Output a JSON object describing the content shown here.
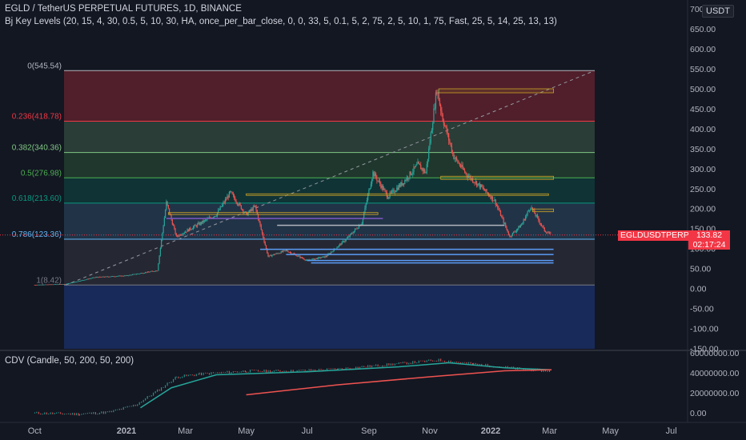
{
  "header": {
    "title": "EGLD / TetherUS PERPETUAL FUTURES, 1D, BINANCE",
    "indicator": "Bj Key Levels (20, 15, 4, 30, 0.5, 5, 10, 30, HA, once_per_bar_close, 0, 0, 33, 5, 0.1, 5, 2, 75, 2, 5, 10, 1, 75, Fast, 25, 5, 14, 25, 13, 13)",
    "currency": "USDT",
    "cdv_label": "CDV (Candle, 50, 200, 50, 200)"
  },
  "price_tag": {
    "symbol": "EGLDUSDTPERP",
    "price": "133.82",
    "countdown": "02:17:24"
  },
  "colors": {
    "background": "#131722",
    "up": "#26a69a",
    "down": "#ef5350",
    "price_badge": "#f23645"
  },
  "chart_data": [
    {
      "type": "candlestick",
      "y_axis_ticks": [
        "700",
        "650.00",
        "600.00",
        "550.00",
        "500.00",
        "450.00",
        "400.00",
        "350.00",
        "300.00",
        "250.00",
        "200.00",
        "150.00",
        "100.00",
        "50.00",
        "0.00",
        "-50.00",
        "-100.00",
        "-150.00"
      ],
      "x_axis_ticks": [
        "Oct",
        "2021",
        "Mar",
        "May",
        "Jul",
        "Sep",
        "Nov",
        "2022",
        "Mar",
        "May",
        "Jul"
      ],
      "fib_levels": [
        {
          "label": "0(545.54)",
          "value": 545.54,
          "color": "#b2b5be"
        },
        {
          "label": "0.236(418.78)",
          "value": 418.78,
          "color": "#f23645"
        },
        {
          "label": "0.382(340.36)",
          "value": 340.36,
          "color": "#81c784"
        },
        {
          "label": "0.5(276.98)",
          "value": 276.98,
          "color": "#4caf50"
        },
        {
          "label": "0.618(213.60)",
          "value": 213.6,
          "color": "#089981"
        },
        {
          "label": "0.786(123.36)",
          "value": 123.36,
          "color": "#64b5f6"
        },
        {
          "label": "1(8.42)",
          "value": 8.42,
          "color": "#787b86"
        }
      ],
      "price_path": [
        [
          "2020-10-01",
          9
        ],
        [
          "2020-11-01",
          11
        ],
        [
          "2020-12-01",
          28
        ],
        [
          "2021-01-01",
          32
        ],
        [
          "2021-02-01",
          45
        ],
        [
          "2021-02-10",
          215
        ],
        [
          "2021-02-20",
          130
        ],
        [
          "2021-03-10",
          155
        ],
        [
          "2021-04-01",
          185
        ],
        [
          "2021-04-15",
          240
        ],
        [
          "2021-05-01",
          185
        ],
        [
          "2021-05-10",
          205
        ],
        [
          "2021-05-23",
          80
        ],
        [
          "2021-06-10",
          95
        ],
        [
          "2021-07-01",
          70
        ],
        [
          "2021-07-20",
          80
        ],
        [
          "2021-08-10",
          125
        ],
        [
          "2021-08-25",
          165
        ],
        [
          "2021-09-05",
          290
        ],
        [
          "2021-09-20",
          230
        ],
        [
          "2021-10-05",
          265
        ],
        [
          "2021-10-20",
          310
        ],
        [
          "2021-10-28",
          290
        ],
        [
          "2021-11-08",
          500
        ],
        [
          "2021-11-14",
          425
        ],
        [
          "2021-11-25",
          330
        ],
        [
          "2021-12-08",
          285
        ],
        [
          "2021-12-22",
          255
        ],
        [
          "2022-01-05",
          220
        ],
        [
          "2022-01-20",
          130
        ],
        [
          "2022-02-01",
          160
        ],
        [
          "2022-02-10",
          205
        ],
        [
          "2022-02-24",
          145
        ],
        [
          "2022-03-03",
          134
        ]
      ],
      "current_price": 133.82
    },
    {
      "type": "line",
      "title": "CDV (Candle, 50, 200, 50, 200)",
      "y_axis_ticks": [
        "60000000.00",
        "40000000.00",
        "20000000.00",
        "0.00"
      ]
    }
  ]
}
